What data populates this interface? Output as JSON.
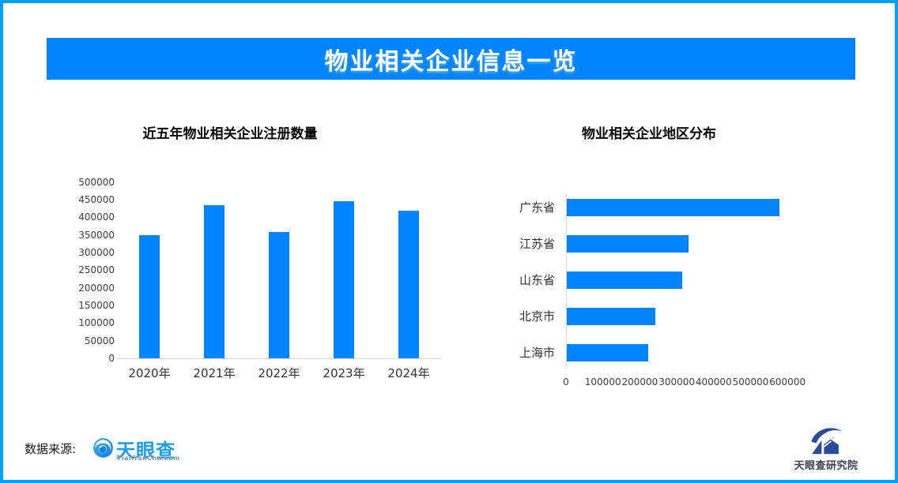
{
  "page": {
    "background": "#FFFFFF",
    "border_color": "#02A0FA"
  },
  "header": {
    "title": "物业相关企业信息一览",
    "background": "#0084FF",
    "text_color": "#FFFFFF"
  },
  "chart_data": [
    {
      "type": "bar",
      "title": "近五年物业相关企业注册数量",
      "categories": [
        "2020年",
        "2021年",
        "2022年",
        "2023年",
        "2024年"
      ],
      "values": [
        350000,
        435000,
        358000,
        445000,
        418000
      ],
      "xlabel": "",
      "ylabel": "",
      "ylim": [
        0,
        500000
      ],
      "ytick_step": 50000,
      "yticks": [
        500000,
        450000,
        400000,
        350000,
        300000,
        250000,
        200000,
        150000,
        100000,
        50000,
        0
      ],
      "bar_color": "#0084FF",
      "grid": false,
      "legend": "none"
    },
    {
      "type": "bar-horizontal",
      "title": "物业相关企业地区分布",
      "categories": [
        "广东省",
        "江苏省",
        "山东省",
        "北京市",
        "上海市"
      ],
      "values": [
        575000,
        330000,
        312000,
        240000,
        220000
      ],
      "xlabel": "",
      "ylabel": "",
      "xlim": [
        0,
        600000
      ],
      "xticks": [
        0,
        100000,
        200000,
        300000,
        400000,
        500000,
        600000
      ],
      "bar_color": "#0084FF",
      "grid": false,
      "legend": "none"
    }
  ],
  "footer": {
    "source_label": "数据来源:",
    "tianyancha": {
      "name": "天眼查",
      "domain": "TianYanCha.com",
      "brand_color": "#1E9EF0"
    },
    "research_institute": {
      "name": "天眼查研究院",
      "brand_color": "#2A4C9B"
    }
  }
}
